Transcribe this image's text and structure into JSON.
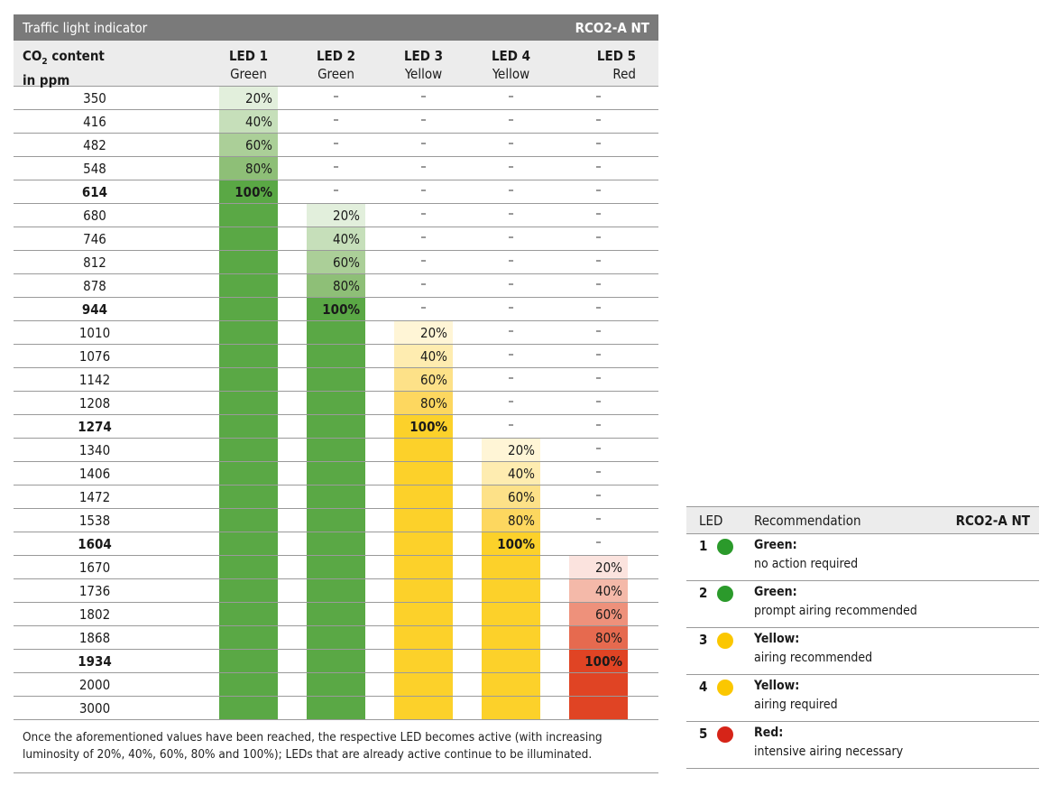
{
  "main": {
    "title": "Traffic light indicator",
    "model": "RCO2-A NT",
    "col_co2_line1": "CO",
    "col_co2_sub": "2",
    "col_co2_rest": " content",
    "col_co2_line2": "in ppm",
    "leds": [
      {
        "label": "LED 1",
        "color": "Green"
      },
      {
        "label": "LED 2",
        "color": "Green"
      },
      {
        "label": "LED 3",
        "color": "Yellow"
      },
      {
        "label": "LED 4",
        "color": "Yellow"
      },
      {
        "label": "LED 5",
        "color": "Red"
      }
    ],
    "rows": [
      {
        "ppm": "350",
        "bold": false,
        "cells": [
          "20%",
          "–",
          "–",
          "–",
          "–"
        ]
      },
      {
        "ppm": "416",
        "bold": false,
        "cells": [
          "40%",
          "–",
          "–",
          "–",
          "–"
        ]
      },
      {
        "ppm": "482",
        "bold": false,
        "cells": [
          "60%",
          "–",
          "–",
          "–",
          "–"
        ]
      },
      {
        "ppm": "548",
        "bold": false,
        "cells": [
          "80%",
          "–",
          "–",
          "–",
          "–"
        ]
      },
      {
        "ppm": "614",
        "bold": true,
        "cells": [
          "100%",
          "–",
          "–",
          "–",
          "–"
        ]
      },
      {
        "ppm": "680",
        "bold": false,
        "cells": [
          "on",
          "20%",
          "–",
          "–",
          "–"
        ]
      },
      {
        "ppm": "746",
        "bold": false,
        "cells": [
          "on",
          "40%",
          "–",
          "–",
          "–"
        ]
      },
      {
        "ppm": "812",
        "bold": false,
        "cells": [
          "on",
          "60%",
          "–",
          "–",
          "–"
        ]
      },
      {
        "ppm": "878",
        "bold": false,
        "cells": [
          "on",
          "80%",
          "–",
          "–",
          "–"
        ]
      },
      {
        "ppm": "944",
        "bold": true,
        "cells": [
          "on",
          "100%",
          "–",
          "–",
          "–"
        ]
      },
      {
        "ppm": "1010",
        "bold": false,
        "cells": [
          "on",
          "on",
          "20%",
          "–",
          "–"
        ]
      },
      {
        "ppm": "1076",
        "bold": false,
        "cells": [
          "on",
          "on",
          "40%",
          "–",
          "–"
        ]
      },
      {
        "ppm": "1142",
        "bold": false,
        "cells": [
          "on",
          "on",
          "60%",
          "–",
          "–"
        ]
      },
      {
        "ppm": "1208",
        "bold": false,
        "cells": [
          "on",
          "on",
          "80%",
          "–",
          "–"
        ]
      },
      {
        "ppm": "1274",
        "bold": true,
        "cells": [
          "on",
          "on",
          "100%",
          "–",
          "–"
        ]
      },
      {
        "ppm": "1340",
        "bold": false,
        "cells": [
          "on",
          "on",
          "on",
          "20%",
          "–"
        ]
      },
      {
        "ppm": "1406",
        "bold": false,
        "cells": [
          "on",
          "on",
          "on",
          "40%",
          "–"
        ]
      },
      {
        "ppm": "1472",
        "bold": false,
        "cells": [
          "on",
          "on",
          "on",
          "60%",
          "–"
        ]
      },
      {
        "ppm": "1538",
        "bold": false,
        "cells": [
          "on",
          "on",
          "on",
          "80%",
          "–"
        ]
      },
      {
        "ppm": "1604",
        "bold": true,
        "cells": [
          "on",
          "on",
          "on",
          "100%",
          "–"
        ]
      },
      {
        "ppm": "1670",
        "bold": false,
        "cells": [
          "on",
          "on",
          "on",
          "on",
          "20%"
        ]
      },
      {
        "ppm": "1736",
        "bold": false,
        "cells": [
          "on",
          "on",
          "on",
          "on",
          "40%"
        ]
      },
      {
        "ppm": "1802",
        "bold": false,
        "cells": [
          "on",
          "on",
          "on",
          "on",
          "60%"
        ]
      },
      {
        "ppm": "1868",
        "bold": false,
        "cells": [
          "on",
          "on",
          "on",
          "on",
          "80%"
        ]
      },
      {
        "ppm": "1934",
        "bold": true,
        "cells": [
          "on",
          "on",
          "on",
          "on",
          "100%"
        ]
      },
      {
        "ppm": "2000",
        "bold": false,
        "cells": [
          "on",
          "on",
          "on",
          "on",
          "on"
        ]
      },
      {
        "ppm": "3000",
        "bold": false,
        "cells": [
          "on",
          "on",
          "on",
          "on",
          "on"
        ]
      }
    ],
    "note_line1": "Once the aforementioned values have been reached, the respective LED becomes active (with increasing",
    "note_line2": "luminosity of 20%, 40%, 60%, 80% and 100%); LEDs that are already active continue to be illuminated."
  },
  "colors": {
    "green": "#5aa845",
    "green_shades": [
      "#e2efdc",
      "#c6dfba",
      "#abcf98",
      "#8ebf77",
      "#5aa845"
    ],
    "yellow": "#fcd12a",
    "yellow_shades": [
      "#fff5d6",
      "#feecb0",
      "#fde188",
      "#fdd75f",
      "#fcd12a"
    ],
    "red": "#e04424",
    "red_shades": [
      "#fbe3de",
      "#f4b9a9",
      "#ee917b",
      "#e66a4f",
      "#e04424"
    ],
    "dot_green": "#2b9a2b",
    "dot_yellow": "#fbc700",
    "dot_red": "#d62418"
  },
  "legend": {
    "col_led": "LED",
    "col_recommendation": "Recommendation",
    "col_model": "RCO2-A NT",
    "items": [
      {
        "num": "1",
        "color": "green",
        "name": "Green:",
        "desc": "no action required"
      },
      {
        "num": "2",
        "color": "green",
        "name": "Green:",
        "desc": "prompt airing recommended"
      },
      {
        "num": "3",
        "color": "yellow",
        "name": "Yellow:",
        "desc": "airing recommended"
      },
      {
        "num": "4",
        "color": "yellow",
        "name": "Yellow:",
        "desc": "airing required"
      },
      {
        "num": "5",
        "color": "red",
        "name": "Red:",
        "desc": "intensive airing necessary"
      }
    ]
  }
}
